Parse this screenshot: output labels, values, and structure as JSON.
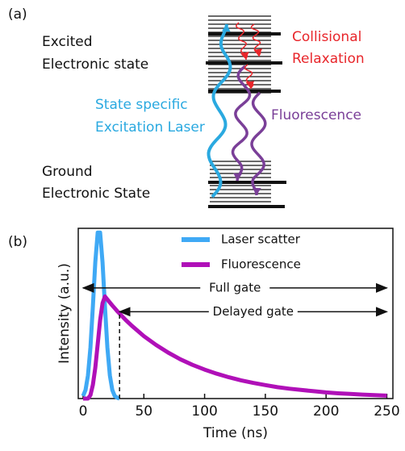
{
  "panel_a": {
    "label": "(a)",
    "excited": [
      "Excited",
      "Electronic state"
    ],
    "ground": [
      "Ground",
      "Electronic State"
    ],
    "excitation": [
      "State specific",
      "Excitation Laser"
    ],
    "relaxation": [
      "Collisional",
      "Relaxation"
    ],
    "fluorescence": "Fluorescence"
  },
  "panel_b_label": "(b)",
  "chart_data": {
    "type": "line",
    "xlabel": "Time (ns)",
    "ylabel": "Intensity (a.u.)",
    "x": [
      0,
      2,
      4,
      6,
      8,
      10,
      12,
      14,
      16,
      18,
      20,
      22,
      24,
      26,
      28,
      30,
      35,
      40,
      50,
      60,
      70,
      80,
      90,
      100,
      110,
      120,
      130,
      140,
      150,
      160,
      170,
      180,
      190,
      200,
      210,
      220,
      230,
      240,
      250
    ],
    "series": [
      {
        "name": "Laser scatter",
        "color": "#3fa9f5",
        "values": [
          0.015,
          0.05,
          0.135,
          0.3,
          0.54,
          0.8,
          0.975,
          0.975,
          0.8,
          0.54,
          0.3,
          0.135,
          0.05,
          0.015,
          0.005,
          0,
          null,
          null,
          null,
          null,
          null,
          null,
          null,
          null,
          null,
          null,
          null,
          null,
          null,
          null,
          null,
          null,
          null,
          null,
          null,
          null,
          null,
          null,
          null
        ]
      },
      {
        "name": "Fluorescence",
        "color": "#b010b8",
        "values": [
          0,
          0,
          0,
          0.02,
          0.08,
          0.18,
          0.32,
          0.46,
          0.56,
          0.6,
          0.582,
          0.564,
          0.547,
          0.531,
          0.514,
          0.499,
          0.462,
          0.428,
          0.367,
          0.315,
          0.27,
          0.231,
          0.198,
          0.17,
          0.146,
          0.125,
          0.107,
          0.092,
          0.079,
          0.067,
          0.058,
          0.05,
          0.043,
          0.036,
          0.031,
          0.027,
          0.023,
          0.02,
          0.017
        ]
      }
    ],
    "annotations": [
      {
        "text": "Full gate",
        "start": 0,
        "end": 250
      },
      {
        "text": "Delayed gate",
        "start": 30,
        "end": 250
      }
    ],
    "xlim": [
      -4,
      255
    ],
    "xticks": [
      0,
      50,
      100,
      150,
      200,
      250
    ],
    "ylim": [
      0,
      1
    ],
    "legend": "upper center"
  }
}
